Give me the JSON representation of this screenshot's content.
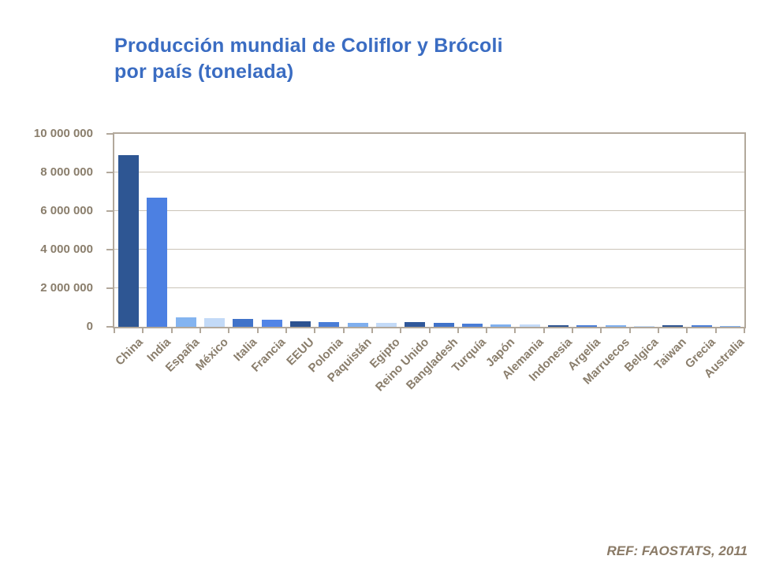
{
  "slide": {
    "title_line1": "Producción mundial de Coliflor y Brócoli",
    "title_line2": "por país (tonelada)",
    "source": "REF: FAOSTATS, 2011"
  },
  "chart_data": {
    "type": "bar",
    "title": "Producción mundial de Coliflor y Brócoli por país (tonelada)",
    "unit": "tonelada",
    "source": "REF: FAOSTATS, 2011",
    "ylim": [
      0,
      10000000
    ],
    "ytick_interval": 2000000,
    "ytick_labels": [
      "0",
      "2 000 000",
      "4 000 000",
      "6 000 000",
      "8 000 000",
      "10 000 000"
    ],
    "grid": true,
    "legend": false,
    "categories": [
      "China",
      "India",
      "España",
      "México",
      "Italia",
      "Francia",
      "EEUU",
      "Polonia",
      "Paquistán",
      "Egipto",
      "Reino Unido",
      "Bangladesh",
      "Turquía",
      "Japón",
      "Alemania",
      "Indonesia",
      "Argelia",
      "Marruecos",
      "Belgica",
      "Taiwan",
      "Grecia",
      "Australia"
    ],
    "values": [
      8900000,
      6700000,
      480000,
      430000,
      420000,
      370000,
      290000,
      260000,
      210000,
      195000,
      235000,
      185000,
      175000,
      140000,
      115000,
      100000,
      95000,
      85000,
      55000,
      80000,
      70000,
      45000
    ],
    "bar_colors": [
      "#2E5693",
      "#4C80E2",
      "#84B4F0",
      "#C3DAF7",
      "#4173C9",
      "#5285E6",
      "#2C5290",
      "#4A7DD6",
      "#7FAFEE",
      "#C3DAF7",
      "#30589A",
      "#4173C9",
      "#4A7DD6",
      "#7FAFEE",
      "#C3DAF7",
      "#2C5290",
      "#4A7DD6",
      "#7FAFEE",
      "#C3DAF7",
      "#2C5290",
      "#4A7DD6",
      "#7FAFEE"
    ],
    "colors": {
      "title": "#3A6CC2",
      "axis_text": "#8A7E6C",
      "frame": "#B2A89B",
      "gridline": "#CBC4B8",
      "source_text": "#8A7A66",
      "background": "#FFFFFF"
    }
  }
}
